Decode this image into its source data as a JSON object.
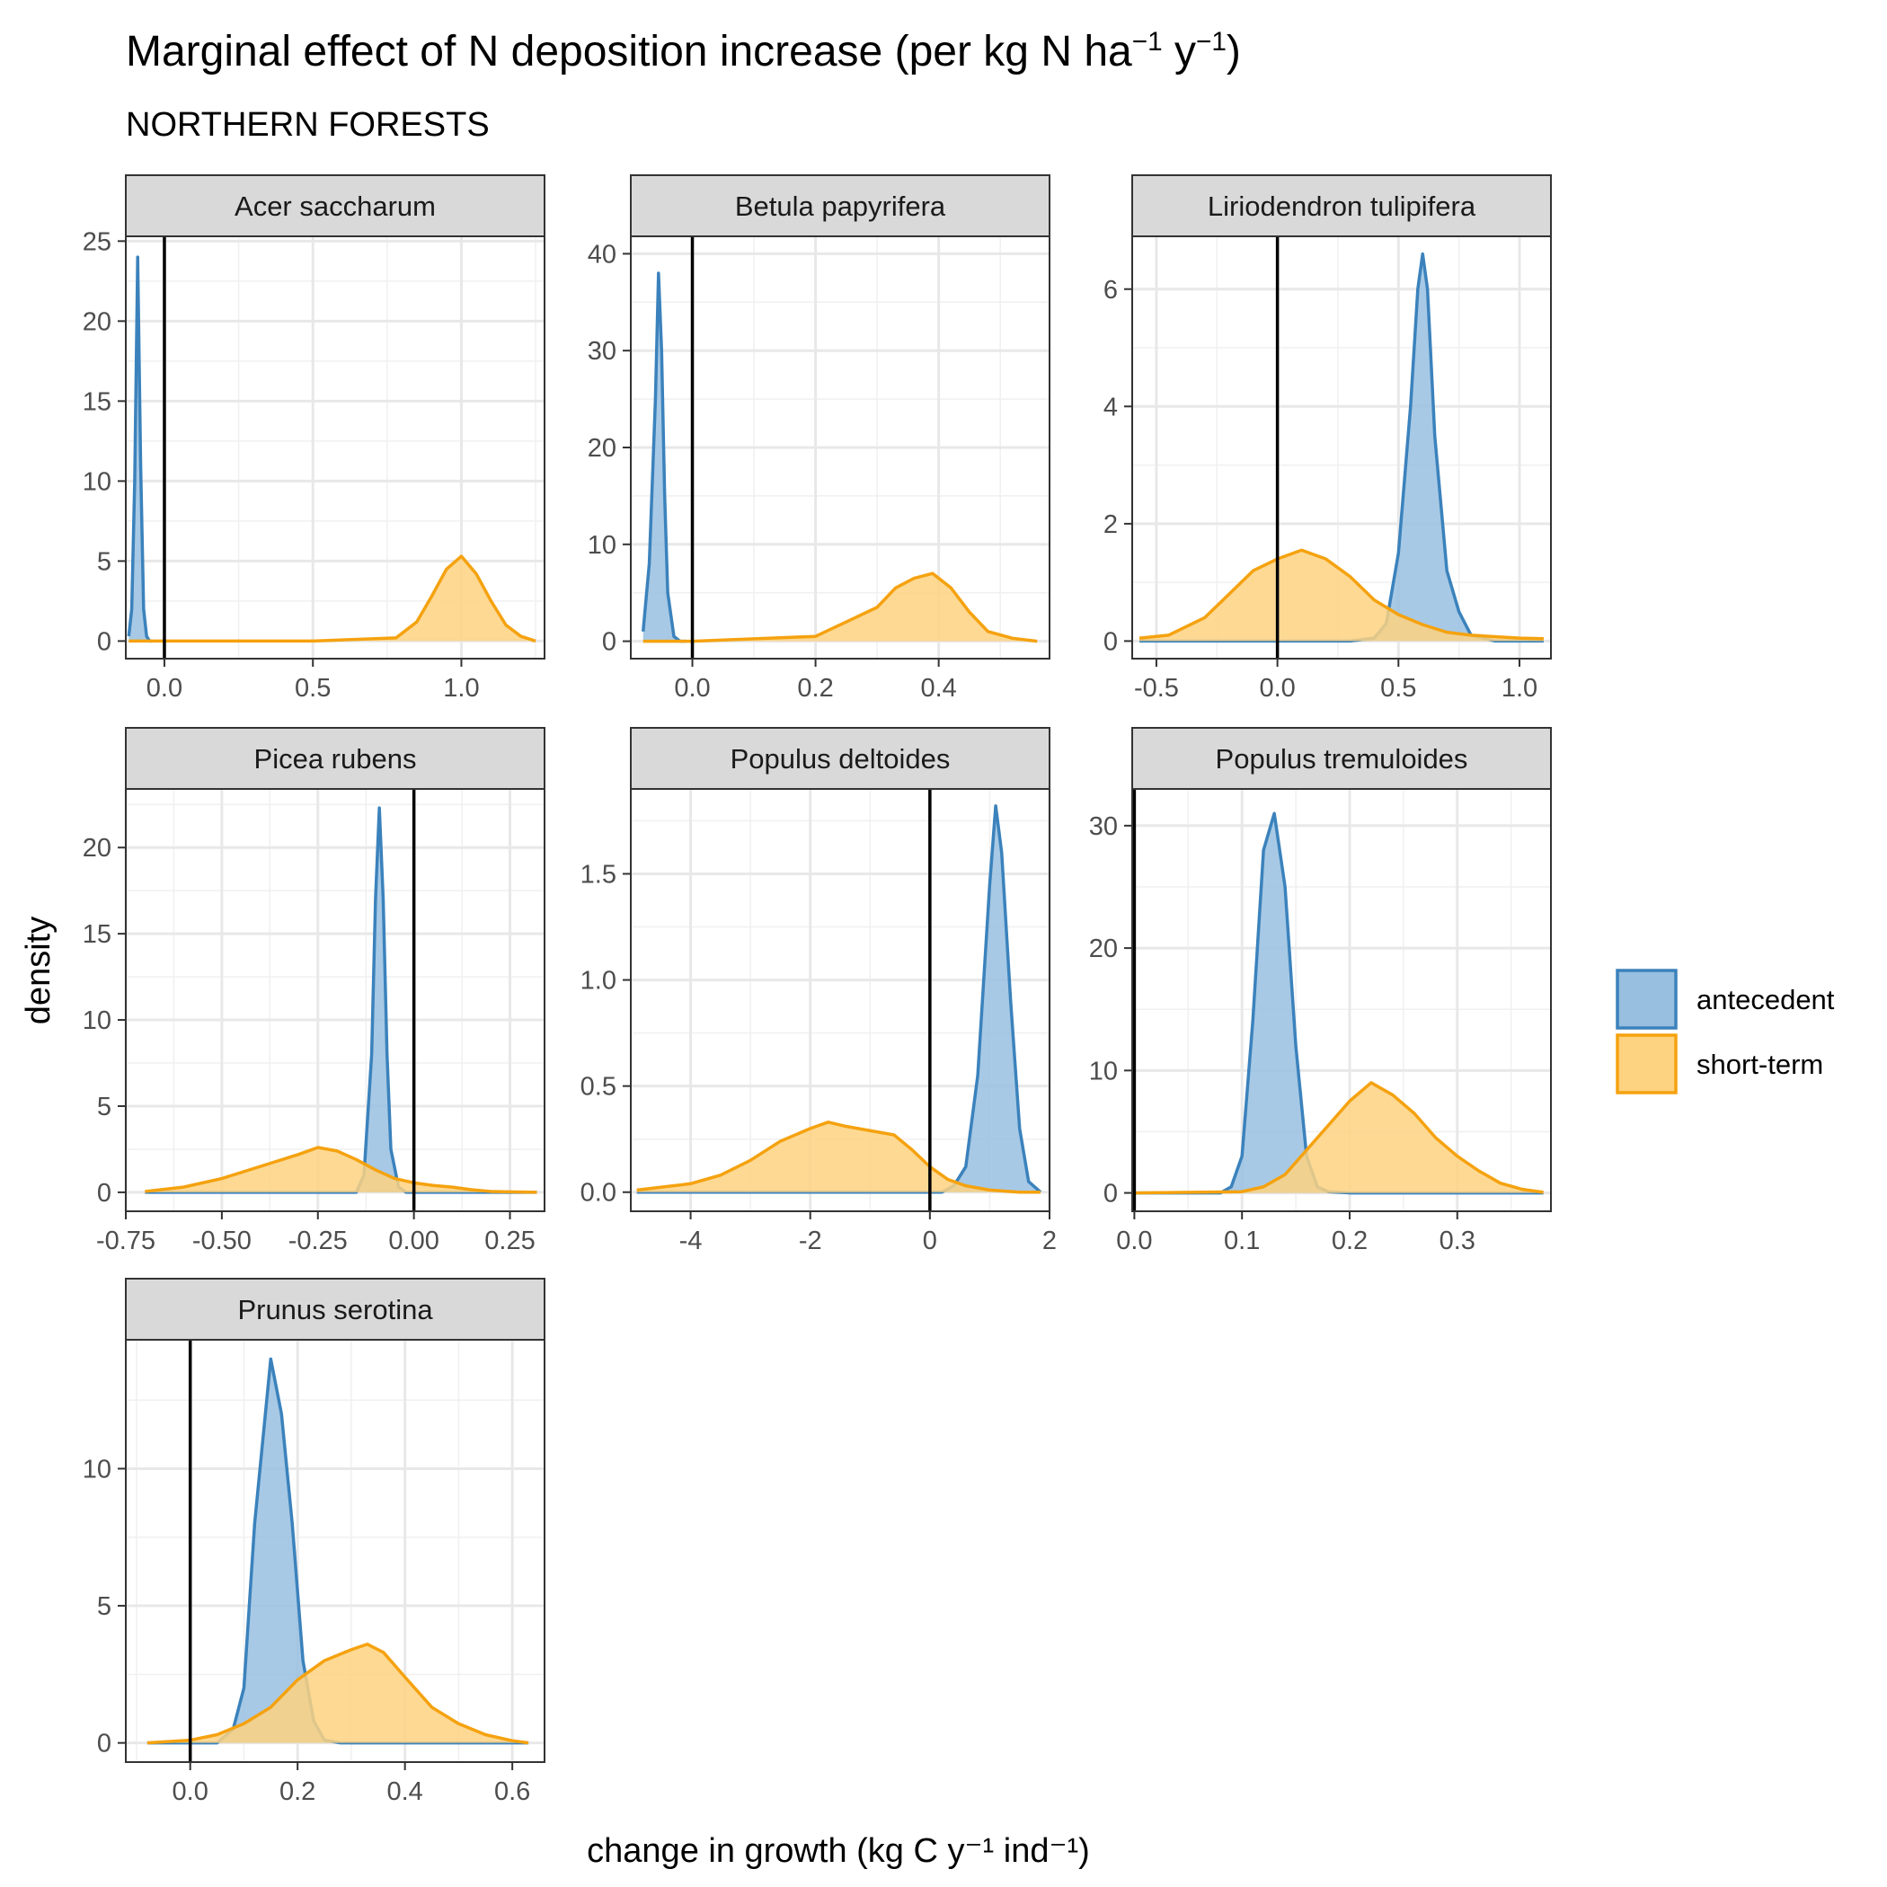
{
  "chart_data": {
    "type": "area",
    "title": {
      "pre": "Marginal effect of N deposition increase (per kg N ha",
      "sup1": "−1",
      "mid": " y",
      "sup2": "−1",
      "post": ")"
    },
    "subtitle": "NORTHERN FORESTS",
    "ylabel": "density",
    "xlabel": "change in growth (kg C y⁻¹ ind⁻¹)",
    "legend": {
      "position": "right",
      "items": [
        {
          "label": "antecedent",
          "color": "#3B82BC",
          "fill": "#98BFE0"
        },
        {
          "label": "short-term",
          "color": "#F5A20F",
          "fill": "#FDD281"
        }
      ]
    },
    "panels": [
      {
        "name": "Acer saccharum",
        "xlim": [
          -0.13,
          1.28
        ],
        "ylim": [
          -1.1,
          25.3
        ],
        "xticks": [
          0.0,
          0.5,
          1.0
        ],
        "xtick_labels": [
          "0.0",
          "0.5",
          "1.0"
        ],
        "yticks": [
          0,
          5,
          10,
          15,
          20,
          25
        ],
        "ytick_labels": [
          "0",
          "5",
          "10",
          "15",
          "20",
          "25"
        ],
        "vline": 0,
        "series": [
          {
            "name": "antecedent",
            "x": [
              -0.12,
              -0.11,
              -0.1,
              -0.09,
              -0.08,
              -0.07,
              -0.06,
              -0.05,
              -0.04
            ],
            "y": [
              0.3,
              2,
              10,
              24,
              11,
              2,
              0.3,
              0,
              0
            ]
          },
          {
            "name": "short-term",
            "x": [
              -0.12,
              0.0,
              0.5,
              0.78,
              0.85,
              0.9,
              0.95,
              1.0,
              1.05,
              1.1,
              1.15,
              1.2,
              1.25
            ],
            "y": [
              0,
              0,
              0,
              0.2,
              1.2,
              2.8,
              4.5,
              5.3,
              4.2,
              2.5,
              1.0,
              0.3,
              0
            ]
          }
        ]
      },
      {
        "name": "Betula papyrifera",
        "xlim": [
          -0.1,
          0.58
        ],
        "ylim": [
          -1.8,
          41.8
        ],
        "xticks": [
          0.0,
          0.2,
          0.4
        ],
        "xtick_labels": [
          "0.0",
          "0.2",
          "0.4"
        ],
        "yticks": [
          0,
          10,
          20,
          30,
          40
        ],
        "ytick_labels": [
          "0",
          "10",
          "20",
          "30",
          "40"
        ],
        "vline": 0,
        "series": [
          {
            "name": "antecedent",
            "x": [
              -0.08,
              -0.07,
              -0.06,
              -0.055,
              -0.05,
              -0.045,
              -0.04,
              -0.03,
              -0.02,
              -0.01
            ],
            "y": [
              1,
              8,
              25,
              38,
              30,
              15,
              5,
              0.5,
              0,
              0
            ]
          },
          {
            "name": "short-term",
            "x": [
              -0.08,
              0.0,
              0.2,
              0.25,
              0.3,
              0.33,
              0.36,
              0.39,
              0.42,
              0.45,
              0.48,
              0.52,
              0.56
            ],
            "y": [
              0,
              0,
              0.5,
              2,
              3.5,
              5.5,
              6.5,
              7,
              5.5,
              3,
              1,
              0.3,
              0
            ]
          }
        ]
      },
      {
        "name": "Liriodendron tulipifera",
        "xlim": [
          -0.6,
          1.13
        ],
        "ylim": [
          -0.3,
          6.9
        ],
        "xticks": [
          -0.5,
          0.0,
          0.5,
          1.0
        ],
        "xtick_labels": [
          "-0.5",
          "0.0",
          "0.5",
          "1.0"
        ],
        "yticks": [
          0,
          2,
          4,
          6
        ],
        "ytick_labels": [
          "0",
          "2",
          "4",
          "6"
        ],
        "vline": 0,
        "series": [
          {
            "name": "antecedent",
            "x": [
              -0.57,
              0.3,
              0.4,
              0.45,
              0.5,
              0.55,
              0.58,
              0.6,
              0.62,
              0.65,
              0.7,
              0.75,
              0.8,
              0.9,
              1.1
            ],
            "y": [
              0,
              0,
              0.05,
              0.3,
              1.5,
              4,
              6,
              6.6,
              6,
              3.5,
              1.2,
              0.5,
              0.1,
              0,
              0
            ]
          },
          {
            "name": "short-term",
            "x": [
              -0.57,
              -0.45,
              -0.3,
              -0.2,
              -0.1,
              0.0,
              0.1,
              0.2,
              0.3,
              0.4,
              0.5,
              0.6,
              0.7,
              0.8,
              1.0,
              1.1
            ],
            "y": [
              0.05,
              0.1,
              0.4,
              0.8,
              1.2,
              1.4,
              1.55,
              1.4,
              1.1,
              0.7,
              0.45,
              0.28,
              0.15,
              0.1,
              0.05,
              0.04
            ]
          }
        ]
      },
      {
        "name": "Picea rubens",
        "xlim": [
          -0.75,
          0.34
        ],
        "ylim": [
          -1.1,
          23.4
        ],
        "xticks": [
          -0.75,
          -0.5,
          -0.25,
          0.0,
          0.25
        ],
        "xtick_labels": [
          "-0.75",
          "-0.50",
          "-0.25",
          "0.00",
          "0.25"
        ],
        "yticks": [
          0,
          5,
          10,
          15,
          20
        ],
        "ytick_labels": [
          "0",
          "5",
          "10",
          "15",
          "20"
        ],
        "vline": 0,
        "series": [
          {
            "name": "antecedent",
            "x": [
              -0.7,
              -0.15,
              -0.13,
              -0.11,
              -0.1,
              -0.09,
              -0.08,
              -0.07,
              -0.06,
              -0.04,
              -0.02,
              0.32
            ],
            "y": [
              0,
              0,
              1,
              8,
              17,
              22.3,
              17,
              8,
              2.5,
              0.3,
              0,
              0
            ]
          },
          {
            "name": "short-term",
            "x": [
              -0.7,
              -0.6,
              -0.5,
              -0.4,
              -0.3,
              -0.25,
              -0.2,
              -0.15,
              -0.1,
              -0.05,
              0.0,
              0.05,
              0.1,
              0.15,
              0.2,
              0.32
            ],
            "y": [
              0.05,
              0.3,
              0.8,
              1.5,
              2.2,
              2.6,
              2.4,
              1.9,
              1.3,
              0.8,
              0.55,
              0.4,
              0.3,
              0.15,
              0.05,
              0
            ]
          }
        ]
      },
      {
        "name": "Populus deltoides",
        "xlim": [
          -5.0,
          2.0
        ],
        "ylim": [
          -0.09,
          1.9
        ],
        "xticks": [
          -4,
          -2,
          0,
          2
        ],
        "xtick_labels": [
          "-4",
          "-2",
          "0",
          "2"
        ],
        "yticks": [
          0.0,
          0.5,
          1.0,
          1.5
        ],
        "ytick_labels": [
          "0.0",
          "0.5",
          "1.0",
          "1.5"
        ],
        "vline": 0,
        "series": [
          {
            "name": "antecedent",
            "x": [
              -4.9,
              0.2,
              0.4,
              0.6,
              0.8,
              1.0,
              1.1,
              1.2,
              1.35,
              1.5,
              1.65,
              1.85
            ],
            "y": [
              0,
              0,
              0.03,
              0.12,
              0.55,
              1.45,
              1.82,
              1.6,
              0.9,
              0.3,
              0.05,
              0
            ]
          },
          {
            "name": "short-term",
            "x": [
              -4.9,
              -4.0,
              -3.5,
              -3.0,
              -2.5,
              -2.0,
              -1.7,
              -1.4,
              -1.0,
              -0.6,
              -0.3,
              0.0,
              0.3,
              0.6,
              1.0,
              1.5,
              1.85
            ],
            "y": [
              0.01,
              0.04,
              0.08,
              0.15,
              0.24,
              0.3,
              0.33,
              0.31,
              0.29,
              0.27,
              0.2,
              0.12,
              0.06,
              0.03,
              0.01,
              0,
              0
            ]
          }
        ]
      },
      {
        "name": "Populus tremuloides",
        "xlim": [
          -0.002,
          0.387
        ],
        "ylim": [
          -1.5,
          33
        ],
        "xticks": [
          0.0,
          0.1,
          0.2,
          0.3
        ],
        "xtick_labels": [
          "0.0",
          "0.1",
          "0.2",
          "0.3"
        ],
        "yticks": [
          0,
          10,
          20,
          30
        ],
        "ytick_labels": [
          "0",
          "10",
          "20",
          "30"
        ],
        "vline": 0,
        "series": [
          {
            "name": "antecedent",
            "x": [
              0.0,
              0.08,
              0.09,
              0.1,
              0.11,
              0.12,
              0.13,
              0.14,
              0.15,
              0.16,
              0.17,
              0.18,
              0.2,
              0.38
            ],
            "y": [
              0,
              0,
              0.5,
              3,
              14,
              28,
              31,
              25,
              12,
              3,
              0.5,
              0.1,
              0,
              0
            ]
          },
          {
            "name": "short-term",
            "x": [
              0.0,
              0.1,
              0.12,
              0.14,
              0.16,
              0.18,
              0.2,
              0.22,
              0.24,
              0.26,
              0.28,
              0.3,
              0.32,
              0.34,
              0.36,
              0.38
            ],
            "y": [
              0,
              0.1,
              0.5,
              1.5,
              3.5,
              5.5,
              7.5,
              9,
              8,
              6.5,
              4.5,
              3,
              1.8,
              0.8,
              0.3,
              0.05
            ]
          }
        ]
      },
      {
        "name": "Prunus serotina",
        "xlim": [
          -0.12,
          0.66
        ],
        "ylim": [
          -0.7,
          14.7
        ],
        "xticks": [
          0.0,
          0.2,
          0.4,
          0.6
        ],
        "xtick_labels": [
          "0.0",
          "0.2",
          "0.4",
          "0.6"
        ],
        "yticks": [
          0,
          5,
          10
        ],
        "ytick_labels": [
          "0",
          "5",
          "10"
        ],
        "vline": 0,
        "series": [
          {
            "name": "antecedent",
            "x": [
              -0.08,
              0.05,
              0.08,
              0.1,
              0.12,
              0.14,
              0.15,
              0.17,
              0.19,
              0.21,
              0.23,
              0.25,
              0.28,
              0.63
            ],
            "y": [
              0,
              0,
              0.5,
              2,
              8,
              12,
              14,
              12,
              8,
              3,
              0.8,
              0.1,
              0,
              0
            ]
          },
          {
            "name": "short-term",
            "x": [
              -0.08,
              0.0,
              0.05,
              0.1,
              0.15,
              0.2,
              0.25,
              0.3,
              0.33,
              0.36,
              0.4,
              0.45,
              0.5,
              0.55,
              0.6,
              0.63
            ],
            "y": [
              0,
              0.1,
              0.3,
              0.7,
              1.3,
              2.3,
              3.0,
              3.4,
              3.6,
              3.3,
              2.4,
              1.3,
              0.7,
              0.3,
              0.08,
              0
            ]
          }
        ]
      }
    ]
  }
}
